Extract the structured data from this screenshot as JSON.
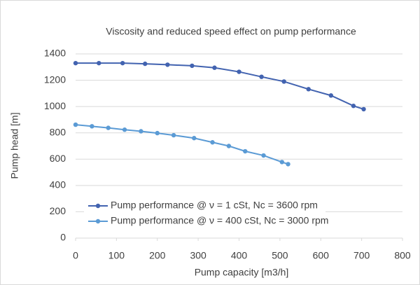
{
  "chart_data": {
    "type": "line",
    "title": "Viscosity and reduced speed effect on pump performance",
    "x_label": "Pump capacity [m3/h]",
    "y_label": "Pump head [m]",
    "xlim": [
      0,
      800
    ],
    "xticks": [
      0,
      100,
      200,
      300,
      400,
      500,
      600,
      700,
      800
    ],
    "ylim": [
      0,
      1400
    ],
    "yticks": [
      0,
      200,
      400,
      600,
      800,
      1000,
      1200,
      1400
    ],
    "grid": true,
    "legend": "lower left",
    "series": [
      {
        "name": "Pump performance @ ν = 1 cSt, Nc = 3600 rpm",
        "color": "#4263b0",
        "x": [
          0,
          57,
          115,
          170,
          225,
          285,
          340,
          400,
          455,
          510,
          570,
          625,
          680,
          705
        ],
        "values": [
          1330,
          1330,
          1330,
          1325,
          1318,
          1310,
          1295,
          1264,
          1226,
          1190,
          1132,
          1084,
          1005,
          980
        ]
      },
      {
        "name": "Pump performance @ ν = 400 cSt, Nc = 3000 rpm",
        "color": "#5b9bd5",
        "x": [
          0,
          40,
          80,
          120,
          160,
          200,
          240,
          290,
          335,
          375,
          415,
          460,
          505,
          520
        ],
        "values": [
          862,
          850,
          838,
          824,
          812,
          798,
          782,
          760,
          728,
          700,
          660,
          628,
          578,
          562
        ]
      }
    ]
  }
}
